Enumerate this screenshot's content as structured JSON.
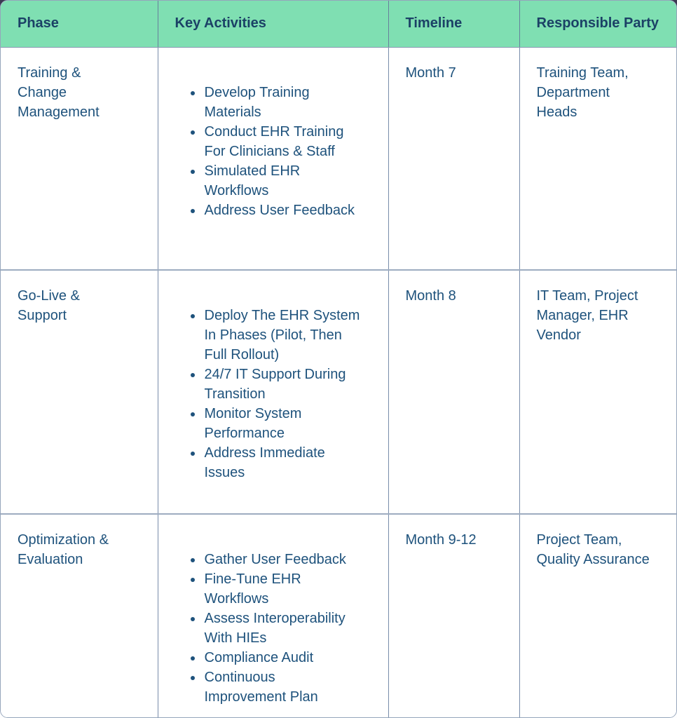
{
  "page": {
    "outer_background_top": "#3b3a52",
    "outer_background_bottom": "#fdfdfe"
  },
  "table": {
    "style": {
      "header_bg": "#7fdfb2",
      "header_text": "#1b4166",
      "body_text": "#1e527c",
      "vertical_divider": "#788caa",
      "horizontal_divider": "#9dacc0",
      "cell_bg": "#ffffff"
    },
    "columns": [
      {
        "label": "Phase"
      },
      {
        "label": "Key Activities"
      },
      {
        "label": "Timeline"
      },
      {
        "label": "Responsible Party"
      }
    ],
    "rows": [
      {
        "phase": "Training &\nChange\nManagement",
        "activities": [
          "Develop Training\nMaterials",
          "Conduct EHR Training\nFor Clinicians & Staff",
          "Simulated EHR\nWorkflows",
          "Address User Feedback"
        ],
        "timeline": "Month 7",
        "responsible": "Training Team,\nDepartment\nHeads"
      },
      {
        "phase": "Go-Live &\nSupport",
        "activities": [
          "Deploy The EHR System\nIn Phases (Pilot, Then\nFull Rollout)",
          "24/7 IT Support During\nTransition",
          "Monitor System\nPerformance",
          "Address Immediate\nIssues"
        ],
        "timeline": "Month 8",
        "responsible": "IT Team, Project\nManager, EHR\nVendor"
      },
      {
        "phase": "Optimization &\nEvaluation",
        "activities": [
          "Gather User Feedback",
          "Fine-Tune EHR\nWorkflows",
          "Assess Interoperability\nWith HIEs",
          "Compliance Audit",
          "Continuous\nImprovement Plan"
        ],
        "timeline": "Month 9-12",
        "responsible": "Project Team,\nQuality Assurance"
      }
    ]
  }
}
